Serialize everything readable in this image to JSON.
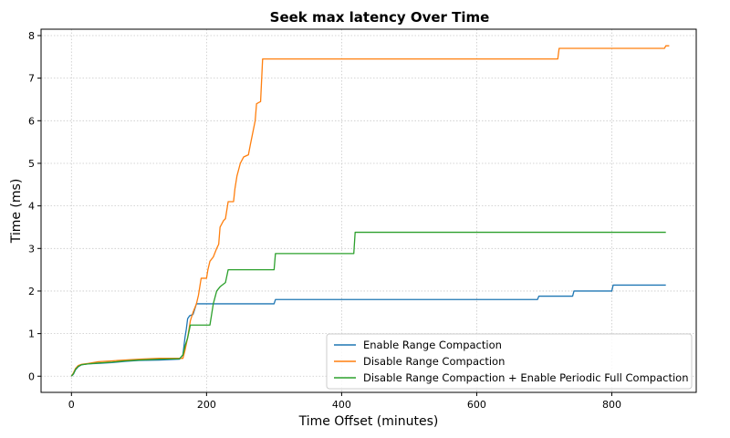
{
  "chart_data": {
    "type": "line",
    "title": "Seek max latency Over Time",
    "xlabel": "Time Offset (minutes)",
    "ylabel": "Time (ms)",
    "xlim": [
      -45,
      925
    ],
    "ylim": [
      -0.38,
      8.15
    ],
    "xticks": [
      0,
      200,
      400,
      600,
      800
    ],
    "yticks": [
      0,
      1,
      2,
      3,
      4,
      5,
      6,
      7,
      8
    ],
    "grid": true,
    "legend_position": "bottom-right",
    "series": [
      {
        "name": "Enable Range Compaction",
        "color": "#1f77b4",
        "points": [
          [
            0,
            0
          ],
          [
            3,
            0.05
          ],
          [
            6,
            0.15
          ],
          [
            10,
            0.22
          ],
          [
            15,
            0.27
          ],
          [
            25,
            0.29
          ],
          [
            40,
            0.3
          ],
          [
            60,
            0.32
          ],
          [
            80,
            0.35
          ],
          [
            100,
            0.37
          ],
          [
            130,
            0.38
          ],
          [
            160,
            0.4
          ],
          [
            165,
            0.5
          ],
          [
            168,
            0.9
          ],
          [
            170,
            1.1
          ],
          [
            172,
            1.35
          ],
          [
            175,
            1.42
          ],
          [
            180,
            1.45
          ],
          [
            183,
            1.6
          ],
          [
            185,
            1.7
          ],
          [
            300,
            1.7
          ],
          [
            302,
            1.8
          ],
          [
            690,
            1.8
          ],
          [
            692,
            1.88
          ],
          [
            742,
            1.88
          ],
          [
            744,
            2.0
          ],
          [
            800,
            2.0
          ],
          [
            802,
            2.14
          ],
          [
            880,
            2.14
          ]
        ]
      },
      {
        "name": "Disable Range Compaction",
        "color": "#ff7f0e",
        "points": [
          [
            0,
            0
          ],
          [
            3,
            0.08
          ],
          [
            6,
            0.18
          ],
          [
            10,
            0.25
          ],
          [
            15,
            0.28
          ],
          [
            25,
            0.3
          ],
          [
            40,
            0.34
          ],
          [
            60,
            0.36
          ],
          [
            80,
            0.38
          ],
          [
            100,
            0.4
          ],
          [
            130,
            0.42
          ],
          [
            165,
            0.42
          ],
          [
            168,
            0.6
          ],
          [
            172,
            0.9
          ],
          [
            176,
            1.3
          ],
          [
            180,
            1.5
          ],
          [
            185,
            1.7
          ],
          [
            188,
            1.9
          ],
          [
            192,
            2.3
          ],
          [
            200,
            2.3
          ],
          [
            202,
            2.5
          ],
          [
            205,
            2.7
          ],
          [
            210,
            2.8
          ],
          [
            215,
            3.0
          ],
          [
            218,
            3.1
          ],
          [
            220,
            3.5
          ],
          [
            225,
            3.65
          ],
          [
            228,
            3.7
          ],
          [
            232,
            4.1
          ],
          [
            240,
            4.1
          ],
          [
            242,
            4.4
          ],
          [
            245,
            4.7
          ],
          [
            250,
            5.0
          ],
          [
            255,
            5.15
          ],
          [
            262,
            5.2
          ],
          [
            265,
            5.45
          ],
          [
            272,
            6.0
          ],
          [
            274,
            6.4
          ],
          [
            280,
            6.45
          ],
          [
            283,
            7.45
          ],
          [
            720,
            7.45
          ],
          [
            722,
            7.7
          ],
          [
            878,
            7.7
          ],
          [
            880,
            7.76
          ],
          [
            885,
            7.76
          ]
        ]
      },
      {
        "name": "Disable Range Compaction + Enable Periodic Full Compaction",
        "color": "#2ca02c",
        "points": [
          [
            0,
            0
          ],
          [
            3,
            0.06
          ],
          [
            6,
            0.16
          ],
          [
            10,
            0.23
          ],
          [
            15,
            0.27
          ],
          [
            25,
            0.29
          ],
          [
            40,
            0.31
          ],
          [
            60,
            0.33
          ],
          [
            80,
            0.36
          ],
          [
            100,
            0.38
          ],
          [
            130,
            0.4
          ],
          [
            160,
            0.41
          ],
          [
            165,
            0.5
          ],
          [
            168,
            0.7
          ],
          [
            172,
            0.9
          ],
          [
            176,
            1.2
          ],
          [
            205,
            1.2
          ],
          [
            207,
            1.4
          ],
          [
            210,
            1.7
          ],
          [
            215,
            2.0
          ],
          [
            220,
            2.1
          ],
          [
            228,
            2.2
          ],
          [
            232,
            2.5
          ],
          [
            300,
            2.5
          ],
          [
            302,
            2.88
          ],
          [
            418,
            2.88
          ],
          [
            420,
            3.38
          ],
          [
            880,
            3.38
          ]
        ]
      }
    ]
  }
}
